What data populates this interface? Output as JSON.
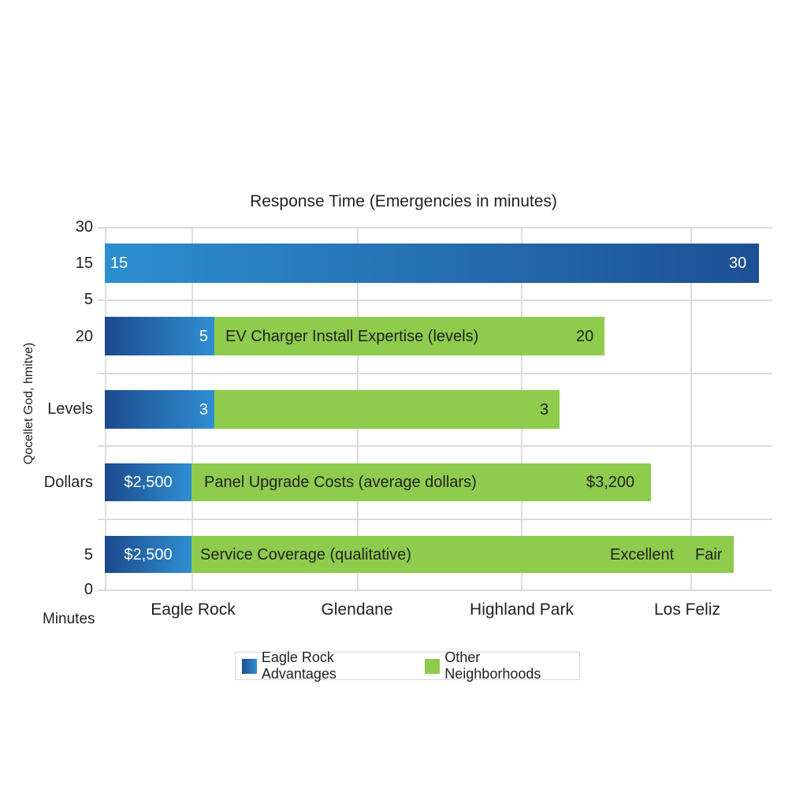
{
  "chart_data": {
    "type": "bar",
    "orientation": "horizontal",
    "stacked": true,
    "title": "Response Time (Emergencies in minutes)",
    "ylabel": "Qocellet God, hmitve)",
    "xlabel": "Minutes",
    "y_tick_labels": [
      "30",
      "15",
      "5",
      "20",
      "Levels",
      "Dollars",
      "5",
      "0"
    ],
    "x_tick_labels": [
      "Eagle Rock",
      "Glendane",
      "Highland Park",
      "Los Feliz"
    ],
    "grid": true,
    "legend_position": "bottom",
    "series": [
      {
        "name": "Eagle Rock Advantages",
        "color": "#2a6db5"
      },
      {
        "name": "Other Neighborhoods",
        "color": "#8fcb4d"
      }
    ],
    "bars": [
      {
        "category": "Response Time (Emergencies in minutes)",
        "eagle_rock_label": "15",
        "other_label": "30",
        "end_label": ""
      },
      {
        "category": "EV Charger Install Expertise (levels)",
        "eagle_rock_label": "5",
        "other_label": "20",
        "inline_title": "EV Charger Install Expertise (levels)"
      },
      {
        "category": "",
        "eagle_rock_label": "3",
        "other_label": "3",
        "inline_title": ""
      },
      {
        "category": "Panel Upgrade Costs (average dollars)",
        "eagle_rock_label": "$2,500",
        "other_label": "$3,200",
        "inline_title": "Panel Upgrade Costs (average dollars)"
      },
      {
        "category": "Service Coverage (qualitative)",
        "eagle_rock_label": "$2,500",
        "other_label": "Excellent",
        "other_label_2": "Fair",
        "inline_title": "Service Coverage (qualitative)"
      }
    ]
  }
}
